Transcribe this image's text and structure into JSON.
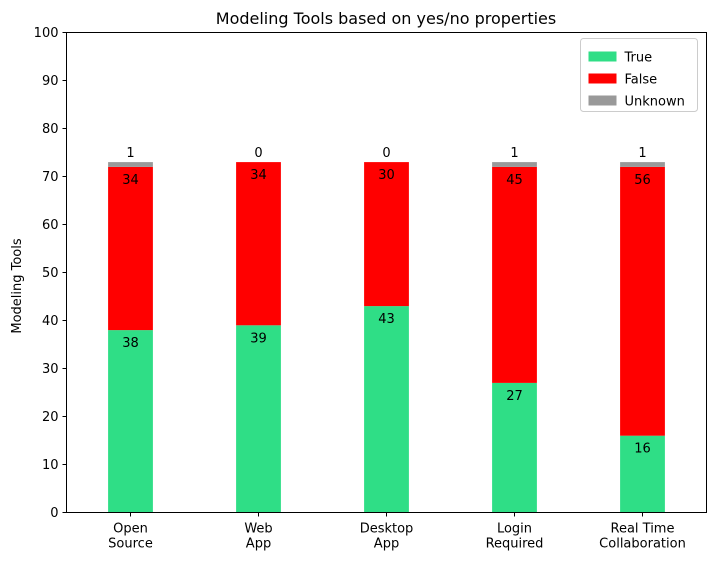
{
  "chart_data": {
    "type": "bar",
    "stacked": true,
    "title": "Modeling Tools based on yes/no properties",
    "xlabel": "",
    "ylabel": "Modeling Tools",
    "ylim": [
      0,
      100
    ],
    "yticks": [
      0,
      10,
      20,
      30,
      40,
      50,
      60,
      70,
      80,
      90,
      100
    ],
    "grid": false,
    "legend_position": "top-right",
    "categories": [
      [
        "Open",
        "Source"
      ],
      [
        "Web",
        "App"
      ],
      [
        "Desktop",
        "App"
      ],
      [
        "Login",
        "Required"
      ],
      [
        "Real Time",
        "Collaboration"
      ]
    ],
    "series": [
      {
        "name": "True",
        "color": "#2fde86",
        "values": [
          38,
          39,
          43,
          27,
          16
        ]
      },
      {
        "name": "False",
        "color": "#ff0000",
        "values": [
          34,
          34,
          30,
          45,
          56
        ]
      },
      {
        "name": "Unknown",
        "color": "#999999",
        "values": [
          1,
          0,
          0,
          1,
          1
        ]
      }
    ]
  }
}
